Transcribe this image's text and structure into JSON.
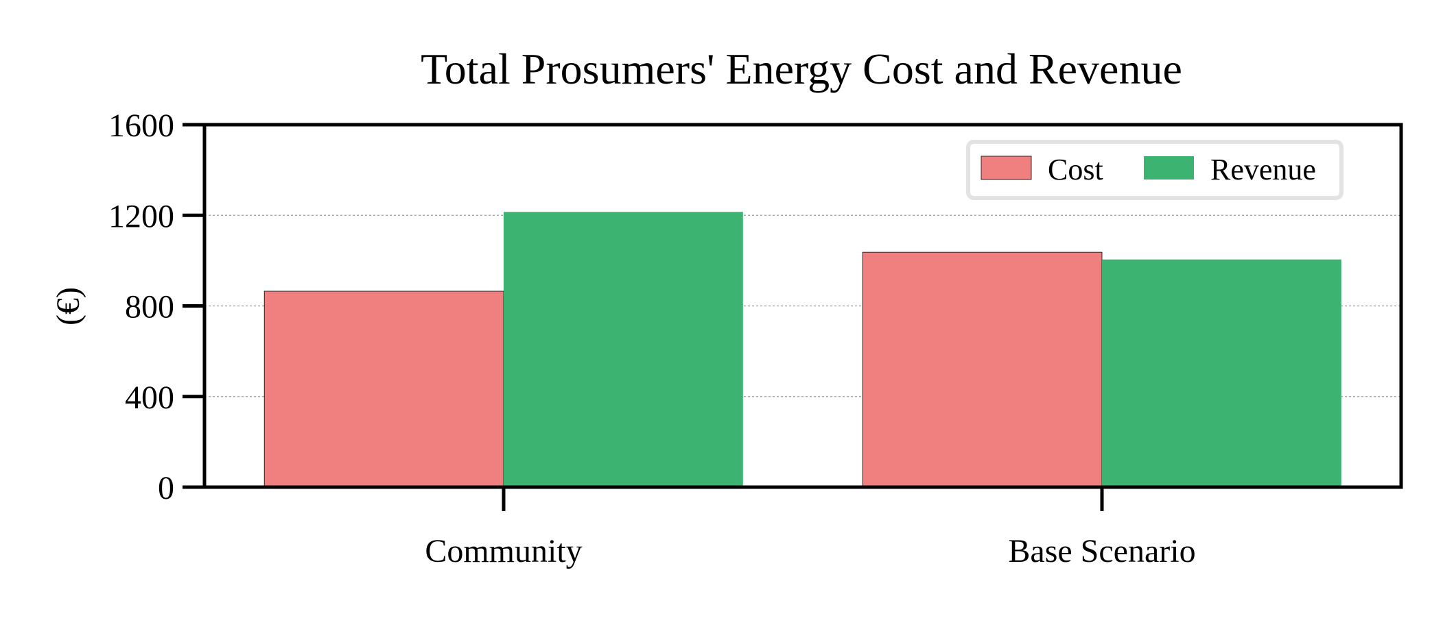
{
  "chart_data": {
    "type": "bar",
    "title": "Total Prosumers' Energy Cost and Revenue",
    "xlabel": "",
    "ylabel": "(€)",
    "categories": [
      "Community",
      "Base Scenario"
    ],
    "series": [
      {
        "name": "Cost",
        "values": [
          865,
          1037
        ],
        "color": "#f08080"
      },
      {
        "name": "Revenue",
        "values": [
          1215,
          1005
        ],
        "color": "#3cb371"
      }
    ],
    "ylim": [
      0,
      1600
    ],
    "yticks": [
      0,
      400,
      800,
      1200,
      1600
    ],
    "ytick_labels": [
      "0",
      "400",
      "800",
      "1200",
      "1600"
    ],
    "grid": "horizontal dashed",
    "legend_position": "top-right"
  }
}
